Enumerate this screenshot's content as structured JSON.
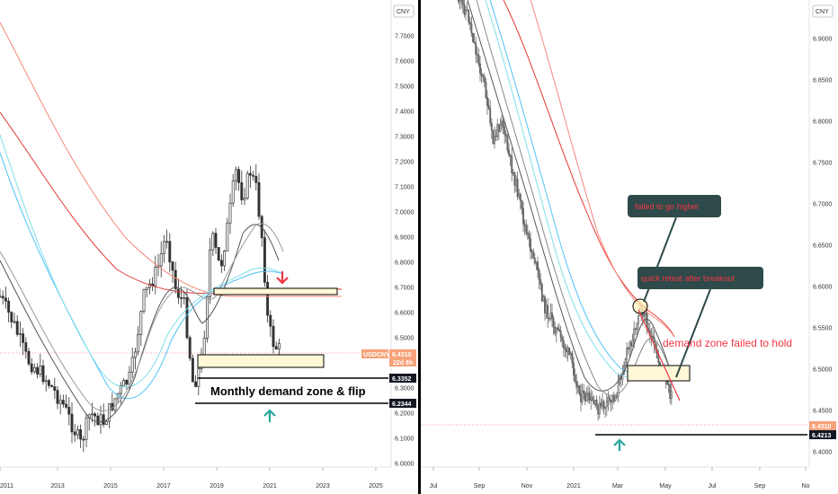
{
  "chart_data": [
    {
      "type": "line",
      "currency_badge": "CNY",
      "symbol_tag": "USDCNY",
      "last_price": "6.4310",
      "countdown": "22d 6h",
      "x_ticks": [
        "2011",
        "2013",
        "2015",
        "2017",
        "2019",
        "2021",
        "2023",
        "2025"
      ],
      "y_ticks": [
        "7.7000",
        "7.6000",
        "7.5000",
        "7.4000",
        "7.3000",
        "7.2000",
        "7.1000",
        "7.0000",
        "6.9000",
        "6.8000",
        "6.7000",
        "6.6000",
        "6.5000",
        "6.4000",
        "6.3000",
        "6.2000",
        "6.1000",
        "6.0000"
      ],
      "ylim": [
        5.95,
        7.86
      ],
      "price_labels": [
        "6.3352",
        "6.2344"
      ],
      "annotations": [
        "Monthly demand zone & flip"
      ],
      "series": [
        {
          "x": [
            2010.5,
            2011.5,
            2012.5,
            2013.5,
            2014.2,
            2014.7,
            2015.6,
            2016.5,
            2017.0,
            2017.5,
            2018.2,
            2018.9,
            2019.5,
            2019.8,
            2020.4,
            2020.9,
            2021.2
          ],
          "values": [
            6.7,
            6.4,
            6.3,
            6.15,
            6.05,
            6.2,
            6.3,
            6.7,
            6.95,
            6.6,
            6.3,
            6.9,
            6.9,
            7.15,
            7.1,
            6.6,
            6.45
          ]
        }
      ],
      "zones": [
        {
          "label": "supply",
          "low": 6.68,
          "high": 6.7
        },
        {
          "label": "demand",
          "low": 6.35,
          "high": 6.4
        }
      ]
    },
    {
      "type": "line",
      "currency_badge": "CNY",
      "last_price": "6.4310",
      "x_ticks": [
        "Jul",
        "Sep",
        "Nov",
        "2021",
        "Mar",
        "May",
        "Jul",
        "Sep",
        "No"
      ],
      "y_ticks": [
        "6.9000",
        "6.8500",
        "6.8000",
        "6.7500",
        "6.7000",
        "6.6500",
        "6.6000",
        "6.5500",
        "6.5000",
        "6.4500",
        "6.4000"
      ],
      "ylim": [
        6.37,
        6.93
      ],
      "price_labels": [
        "6.4213"
      ],
      "annotations": [
        "failed to go higher",
        "quick retest after breakout",
        "demand zone failed to hold"
      ],
      "series": [
        {
          "x": [
            "Jun",
            "Jul",
            "Aug",
            "Sep",
            "Oct",
            "Nov",
            "Dec",
            "2021",
            "Feb",
            "Mar",
            "Apr",
            "May"
          ],
          "values": [
            6.97,
            6.95,
            6.88,
            6.82,
            6.72,
            6.6,
            6.5,
            6.47,
            6.46,
            6.5,
            6.56,
            6.43
          ]
        }
      ],
      "zones": [
        {
          "label": "demand",
          "low": 6.485,
          "high": 6.5
        }
      ]
    }
  ]
}
